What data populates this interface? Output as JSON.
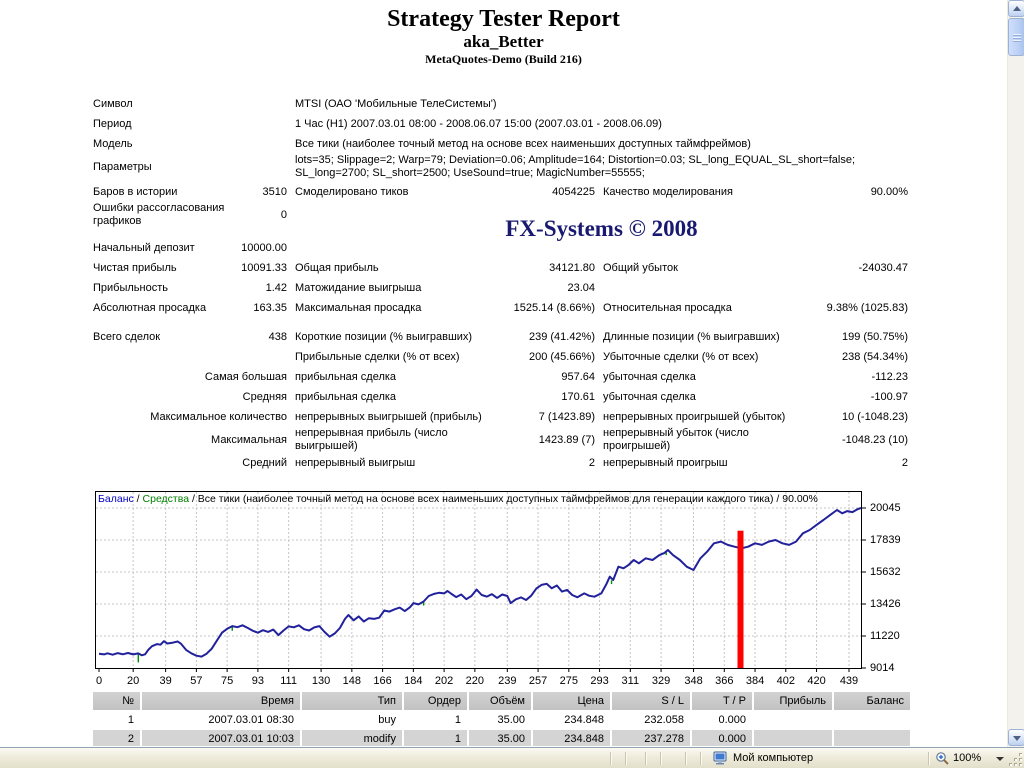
{
  "report": {
    "title": "Strategy Tester Report",
    "subtitle": "aka_Better",
    "server": "MetaQuotes-Demo (Build 216)",
    "watermark": "FX-Systems © 2008",
    "rows": [
      {
        "l1": "Символ",
        "v1": "",
        "l2": "MTSI (ОАО 'Мобильные ТелеСистемы')",
        "v2": "",
        "l3": "",
        "v3": ""
      },
      {
        "l1": "Период",
        "v1": "",
        "l2": "1 Час (H1) 2007.03.01 08:00 - 2008.06.07 15:00 (2007.03.01 - 2008.06.09)",
        "v2": "",
        "l3": "",
        "v3": ""
      },
      {
        "l1": "Модель",
        "v1": "",
        "l2": "Все тики (наиболее точный метод на основе всех наименьших доступных таймфреймов)",
        "v2": "",
        "l3": "",
        "v3": ""
      },
      {
        "l1": "Параметры",
        "v1": "",
        "l2": "lots=35; Slippage=2; Warp=79; Deviation=0.06; Amplitude=164; Distortion=0.03; SL_long_EQUAL_SL_short=false; SL_long=2700; SL_short=2500; UseSound=true; MagicNumber=55555;",
        "v2": "",
        "l3": "",
        "v3": ""
      },
      {
        "l1": "Баров в истории",
        "v1": "3510",
        "l2": "Смоделировано тиков",
        "v2": "4054225",
        "l3": "Качество моделирования",
        "v3": "90.00%"
      },
      {
        "l1": "Ошибки рассогласования графиков",
        "v1": "0",
        "l2": "",
        "v2": "",
        "l3": "",
        "v3": ""
      },
      {
        "l1": "Начальный депозит",
        "v1": "10000.00",
        "l2": "",
        "v2": "",
        "l3": "",
        "v3": ""
      },
      {
        "l1": "Чистая прибыль",
        "v1": "10091.33",
        "l2": "Общая прибыль",
        "v2": "34121.80",
        "l3": "Общий убыток",
        "v3": "-24030.47"
      },
      {
        "l1": "Прибыльность",
        "v1": "1.42",
        "l2": "Матожидание выигрыша",
        "v2": "23.04",
        "l3": "",
        "v3": ""
      },
      {
        "l1": "Абсолютная просадка",
        "v1": "163.35",
        "l2": "Максимальная просадка",
        "v2": "1525.14 (8.66%)",
        "l3": "Относительная просадка",
        "v3": "9.38% (1025.83)"
      },
      {
        "l1": "Всего сделок",
        "v1": "438",
        "l2": "Короткие позиции (% выигравших)",
        "v2": "239 (41.42%)",
        "l3": "Длинные позиции (% выигравших)",
        "v3": "199 (50.75%)"
      },
      {
        "l1": "",
        "v1": "",
        "l2": "Прибыльные сделки (% от всех)",
        "v2": "200 (45.66%)",
        "l3": "Убыточные сделки (% от всех)",
        "v3": "238 (54.34%)"
      },
      {
        "l1": "",
        "v1": "Самая большая",
        "l2": "прибыльная сделка",
        "v2": "957.64",
        "l3": "убыточная сделка",
        "v3": "-112.23"
      },
      {
        "l1": "",
        "v1": "Средняя",
        "l2": "прибыльная сделка",
        "v2": "170.61",
        "l3": "убыточная сделка",
        "v3": "-100.97"
      },
      {
        "l1": "",
        "v1": "Максимальное количество",
        "l2": "непрерывных выигрышей (прибыль)",
        "v2": "7 (1423.89)",
        "l3": "непрерывных проигрышей (убыток)",
        "v3": "10 (-1048.23)"
      },
      {
        "l1": "",
        "v1": "Максимальная",
        "l2": "непрерывная прибыль (число выигрышей)",
        "v2": "1423.89 (7)",
        "l3": "непрерывный убыток (число проигрышей)",
        "v3": "-1048.23 (10)"
      },
      {
        "l1": "",
        "v1": "Средний",
        "l2": "непрерывный выигрыш",
        "v2": "2",
        "l3": "непрерывный проигрыш",
        "v3": "2"
      }
    ]
  },
  "chart_data": {
    "type": "line",
    "legend": {
      "balance_label": "Баланс",
      "separator": " / ",
      "equity_label": "Средства",
      "rest": " / Все тики (наиболее точный метод на основе всех наименьших доступных таймфреймов для генерации каждого тика) / 90.00%"
    },
    "x_ticks": [
      0,
      20,
      39,
      57,
      75,
      93,
      111,
      130,
      148,
      166,
      184,
      202,
      220,
      239,
      257,
      275,
      293,
      311,
      329,
      348,
      366,
      384,
      402,
      420,
      439
    ],
    "y_ticks": [
      20045,
      17839,
      15632,
      13426,
      11220,
      9014
    ],
    "xlim": [
      0,
      448
    ],
    "ylim": [
      9014,
      21217
    ],
    "colors": {
      "balance": "#21219c",
      "equity": "#009000",
      "marker": "#ff0000",
      "grid": "#c6c6c6",
      "legend_balance": "#0000c8",
      "legend_equity": "#008000"
    },
    "series": [
      {
        "name": "Баланс",
        "points": [
          [
            0,
            10000
          ],
          [
            3,
            9950
          ],
          [
            5,
            10030
          ],
          [
            8,
            9930
          ],
          [
            11,
            10040
          ],
          [
            14,
            9960
          ],
          [
            17,
            10050
          ],
          [
            20,
            9950
          ],
          [
            23,
            10020
          ],
          [
            25,
            9890
          ],
          [
            27,
            9960
          ],
          [
            29,
            10280
          ],
          [
            31,
            10520
          ],
          [
            34,
            10660
          ],
          [
            36,
            10620
          ],
          [
            38,
            10860
          ],
          [
            40,
            10700
          ],
          [
            43,
            10760
          ],
          [
            46,
            10840
          ],
          [
            48,
            10690
          ],
          [
            51,
            10260
          ],
          [
            54,
            10030
          ],
          [
            57,
            9860
          ],
          [
            60,
            9800
          ],
          [
            63,
            10000
          ],
          [
            66,
            10350
          ],
          [
            69,
            10900
          ],
          [
            72,
            11450
          ],
          [
            75,
            11720
          ],
          [
            78,
            11900
          ],
          [
            81,
            11830
          ],
          [
            84,
            11960
          ],
          [
            87,
            11780
          ],
          [
            90,
            11580
          ],
          [
            93,
            11450
          ],
          [
            96,
            11620
          ],
          [
            99,
            11500
          ],
          [
            102,
            11660
          ],
          [
            105,
            11280
          ],
          [
            108,
            11600
          ],
          [
            111,
            11880
          ],
          [
            114,
            11820
          ],
          [
            117,
            11960
          ],
          [
            120,
            11690
          ],
          [
            123,
            11600
          ],
          [
            126,
            11810
          ],
          [
            129,
            11900
          ],
          [
            132,
            11500
          ],
          [
            135,
            11170
          ],
          [
            138,
            11400
          ],
          [
            141,
            11770
          ],
          [
            144,
            12400
          ],
          [
            146,
            12670
          ],
          [
            149,
            12300
          ],
          [
            152,
            12570
          ],
          [
            155,
            12220
          ],
          [
            158,
            12450
          ],
          [
            161,
            12400
          ],
          [
            164,
            12480
          ],
          [
            167,
            12980
          ],
          [
            170,
            12900
          ],
          [
            173,
            13060
          ],
          [
            176,
            13180
          ],
          [
            179,
            12940
          ],
          [
            182,
            13200
          ],
          [
            184,
            13490
          ],
          [
            187,
            13400
          ],
          [
            190,
            13600
          ],
          [
            193,
            13980
          ],
          [
            196,
            14120
          ],
          [
            199,
            14200
          ],
          [
            202,
            14160
          ],
          [
            204,
            14320
          ],
          [
            206,
            14150
          ],
          [
            209,
            13900
          ],
          [
            212,
            14080
          ],
          [
            215,
            13760
          ],
          [
            218,
            13980
          ],
          [
            221,
            14420
          ],
          [
            224,
            14050
          ],
          [
            227,
            13940
          ],
          [
            230,
            14100
          ],
          [
            233,
            13850
          ],
          [
            236,
            14080
          ],
          [
            239,
            13980
          ],
          [
            241,
            13490
          ],
          [
            244,
            13750
          ],
          [
            247,
            13880
          ],
          [
            250,
            13700
          ],
          [
            253,
            14000
          ],
          [
            256,
            14500
          ],
          [
            259,
            14740
          ],
          [
            262,
            14820
          ],
          [
            265,
            14510
          ],
          [
            268,
            14700
          ],
          [
            271,
            14280
          ],
          [
            274,
            14400
          ],
          [
            277,
            14050
          ],
          [
            280,
            13890
          ],
          [
            284,
            14160
          ],
          [
            287,
            13990
          ],
          [
            290,
            13930
          ],
          [
            294,
            14160
          ],
          [
            297,
            14800
          ],
          [
            299,
            15310
          ],
          [
            301,
            15080
          ],
          [
            304,
            16000
          ],
          [
            307,
            15890
          ],
          [
            310,
            16120
          ],
          [
            313,
            16460
          ],
          [
            316,
            16230
          ],
          [
            320,
            16580
          ],
          [
            324,
            16460
          ],
          [
            328,
            16800
          ],
          [
            331,
            16950
          ],
          [
            333,
            17150
          ],
          [
            336,
            16800
          ],
          [
            340,
            16460
          ],
          [
            344,
            16000
          ],
          [
            348,
            15770
          ],
          [
            352,
            16580
          ],
          [
            356,
            17040
          ],
          [
            360,
            17610
          ],
          [
            364,
            17730
          ],
          [
            368,
            17500
          ],
          [
            372,
            17380
          ],
          [
            376,
            17270
          ],
          [
            380,
            17380
          ],
          [
            384,
            17610
          ],
          [
            388,
            17500
          ],
          [
            392,
            17730
          ],
          [
            396,
            17840
          ],
          [
            400,
            17610
          ],
          [
            404,
            17500
          ],
          [
            408,
            17730
          ],
          [
            412,
            18300
          ],
          [
            416,
            18530
          ],
          [
            420,
            18880
          ],
          [
            424,
            19220
          ],
          [
            428,
            19570
          ],
          [
            432,
            19910
          ],
          [
            435,
            19680
          ],
          [
            438,
            19830
          ],
          [
            441,
            19760
          ],
          [
            444,
            19960
          ],
          [
            446,
            20045
          ]
        ]
      }
    ],
    "equity_spikes": [
      {
        "x": 23,
        "from": 9990,
        "to": 9400
      },
      {
        "x": 78,
        "from": 11880,
        "to": 11580
      },
      {
        "x": 190,
        "from": 13580,
        "to": 13320
      },
      {
        "x": 300,
        "from": 15060,
        "to": 14800
      },
      {
        "x": 332,
        "from": 17080,
        "to": 16800
      }
    ],
    "marker": {
      "x": 375.5,
      "top": 18480,
      "bottom": 9014,
      "width": 6
    }
  },
  "trades": {
    "headers": [
      "№",
      "Время",
      "Тип",
      "Ордер",
      "Объём",
      "Цена",
      "S / L",
      "T / P",
      "Прибыль",
      "Баланс"
    ],
    "rows": [
      [
        "1",
        "2007.03.01 08:30",
        "buy",
        "1",
        "35.00",
        "234.848",
        "232.058",
        "0.000",
        "",
        ""
      ],
      [
        "2",
        "2007.03.01 10:03",
        "modify",
        "1",
        "35.00",
        "234.848",
        "237.278",
        "0.000",
        "",
        ""
      ]
    ]
  },
  "statusbar": {
    "zone": "Мой компьютер",
    "zoom_level": "100%"
  }
}
